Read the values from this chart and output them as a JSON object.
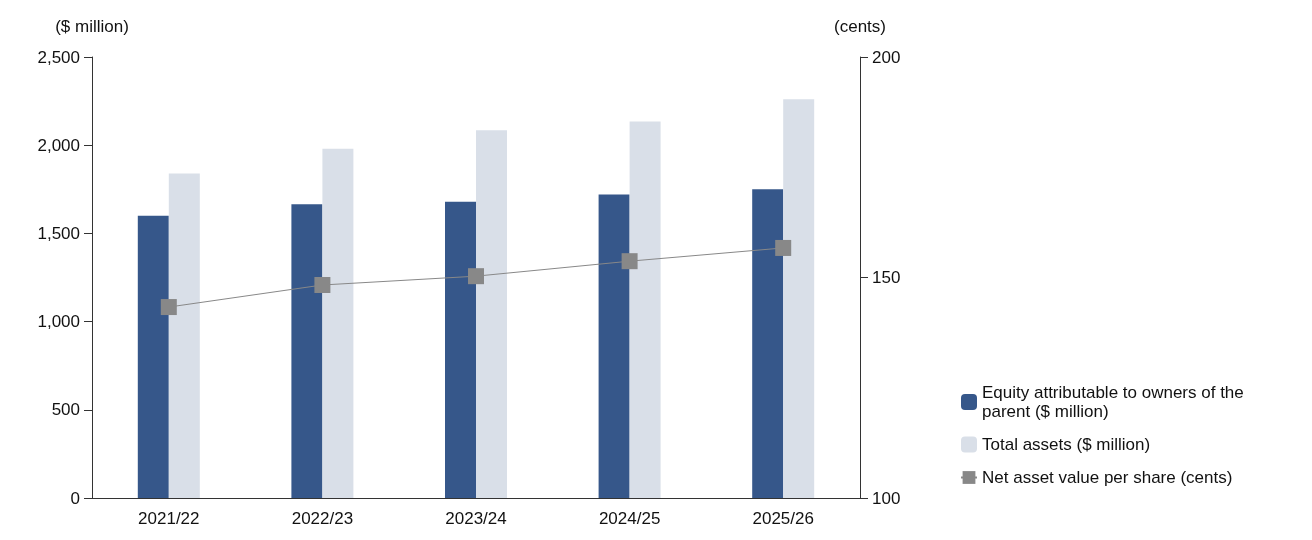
{
  "chart_data": {
    "type": "bar",
    "ylabel": "($ million)",
    "y2label": "(cents)",
    "categories": [
      "2021/22",
      "2022/23",
      "2023/24",
      "2024/25",
      "2025/26"
    ],
    "series": [
      {
        "name": "Equity attributable to owners of the parent ($ million)",
        "color": "#36578a",
        "values": [
          1600,
          1665,
          1680,
          1720,
          1750
        ]
      },
      {
        "name": "Total assets ($ million)",
        "color": "#d9dfe8",
        "values": [
          1840,
          1980,
          2085,
          2135,
          2260
        ]
      },
      {
        "name": "Net asset value per share (cents)",
        "type": "line",
        "axis": "y2",
        "color": "#888888",
        "marker": "square",
        "values": [
          143.3,
          148.3,
          150.3,
          153.7,
          156.7
        ]
      }
    ],
    "ylim": [
      0,
      2500
    ],
    "yticks": [
      0,
      500,
      {
        "value": 1000,
        "label": "1,000"
      },
      {
        "value": 1500,
        "label": "1,500"
      },
      {
        "value": 2000,
        "label": "2,000"
      },
      {
        "value": 2500,
        "label": "2,500"
      }
    ],
    "y2lim": [
      100,
      200
    ],
    "y2ticks": [
      100,
      150,
      200
    ],
    "grid": false,
    "legend": "bottom right"
  }
}
